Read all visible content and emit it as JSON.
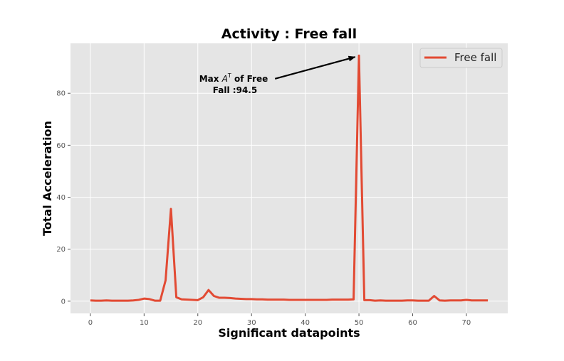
{
  "chart_data": {
    "type": "line",
    "title": "Activity : Free fall",
    "xlabel": "Significant datapoints",
    "ylabel": "Total Acceleration",
    "xlim": [
      -3.7,
      77.7
    ],
    "ylim": [
      -4.7,
      99.2
    ],
    "xticks": [
      0,
      10,
      20,
      30,
      40,
      50,
      60,
      70
    ],
    "yticks": [
      0,
      20,
      40,
      60,
      80
    ],
    "grid": true,
    "legend": "top-right",
    "colors": {
      "line": "#E24A33",
      "background": "#E5E5E5",
      "grid": "#FFFFFF"
    },
    "series": [
      {
        "name": "Free fall",
        "x": [
          0,
          1,
          2,
          3,
          4,
          5,
          6,
          7,
          8,
          9,
          10,
          11,
          12,
          13,
          14,
          15,
          16,
          17,
          18,
          19,
          20,
          21,
          22,
          23,
          24,
          25,
          26,
          27,
          28,
          29,
          30,
          31,
          32,
          33,
          34,
          35,
          36,
          37,
          38,
          39,
          40,
          41,
          42,
          43,
          44,
          45,
          46,
          47,
          48,
          49,
          50,
          51,
          52,
          53,
          54,
          55,
          56,
          57,
          58,
          59,
          60,
          61,
          62,
          63,
          64,
          65,
          66,
          67,
          68,
          69,
          70,
          71,
          72,
          73,
          74
        ],
        "values": [
          0.3,
          0.2,
          0.2,
          0.3,
          0.2,
          0.2,
          0.2,
          0.2,
          0.3,
          0.5,
          1.0,
          0.8,
          0.2,
          0.2,
          8.0,
          35.5,
          1.5,
          0.7,
          0.6,
          0.5,
          0.4,
          1.5,
          4.3,
          2.0,
          1.3,
          1.3,
          1.2,
          1.0,
          0.9,
          0.8,
          0.8,
          0.7,
          0.7,
          0.6,
          0.6,
          0.6,
          0.6,
          0.5,
          0.5,
          0.5,
          0.5,
          0.5,
          0.5,
          0.5,
          0.5,
          0.6,
          0.6,
          0.6,
          0.6,
          0.7,
          94.5,
          0.4,
          0.4,
          0.2,
          0.3,
          0.2,
          0.2,
          0.2,
          0.2,
          0.3,
          0.3,
          0.2,
          0.2,
          0.2,
          2.0,
          0.3,
          0.2,
          0.3,
          0.3,
          0.3,
          0.5,
          0.3,
          0.3,
          0.3,
          0.3
        ]
      }
    ],
    "annotation": {
      "lines": [
        "Max A^T of Free",
        "Fall :94.5"
      ],
      "line1_prefix": "Max ",
      "line1_var": "A",
      "line1_sup": "T",
      "line1_suffix": " of Free",
      "line2": "Fall :94.5",
      "text_pos": [
        30,
        84.5
      ],
      "point": [
        49.8,
        94.5
      ]
    }
  }
}
